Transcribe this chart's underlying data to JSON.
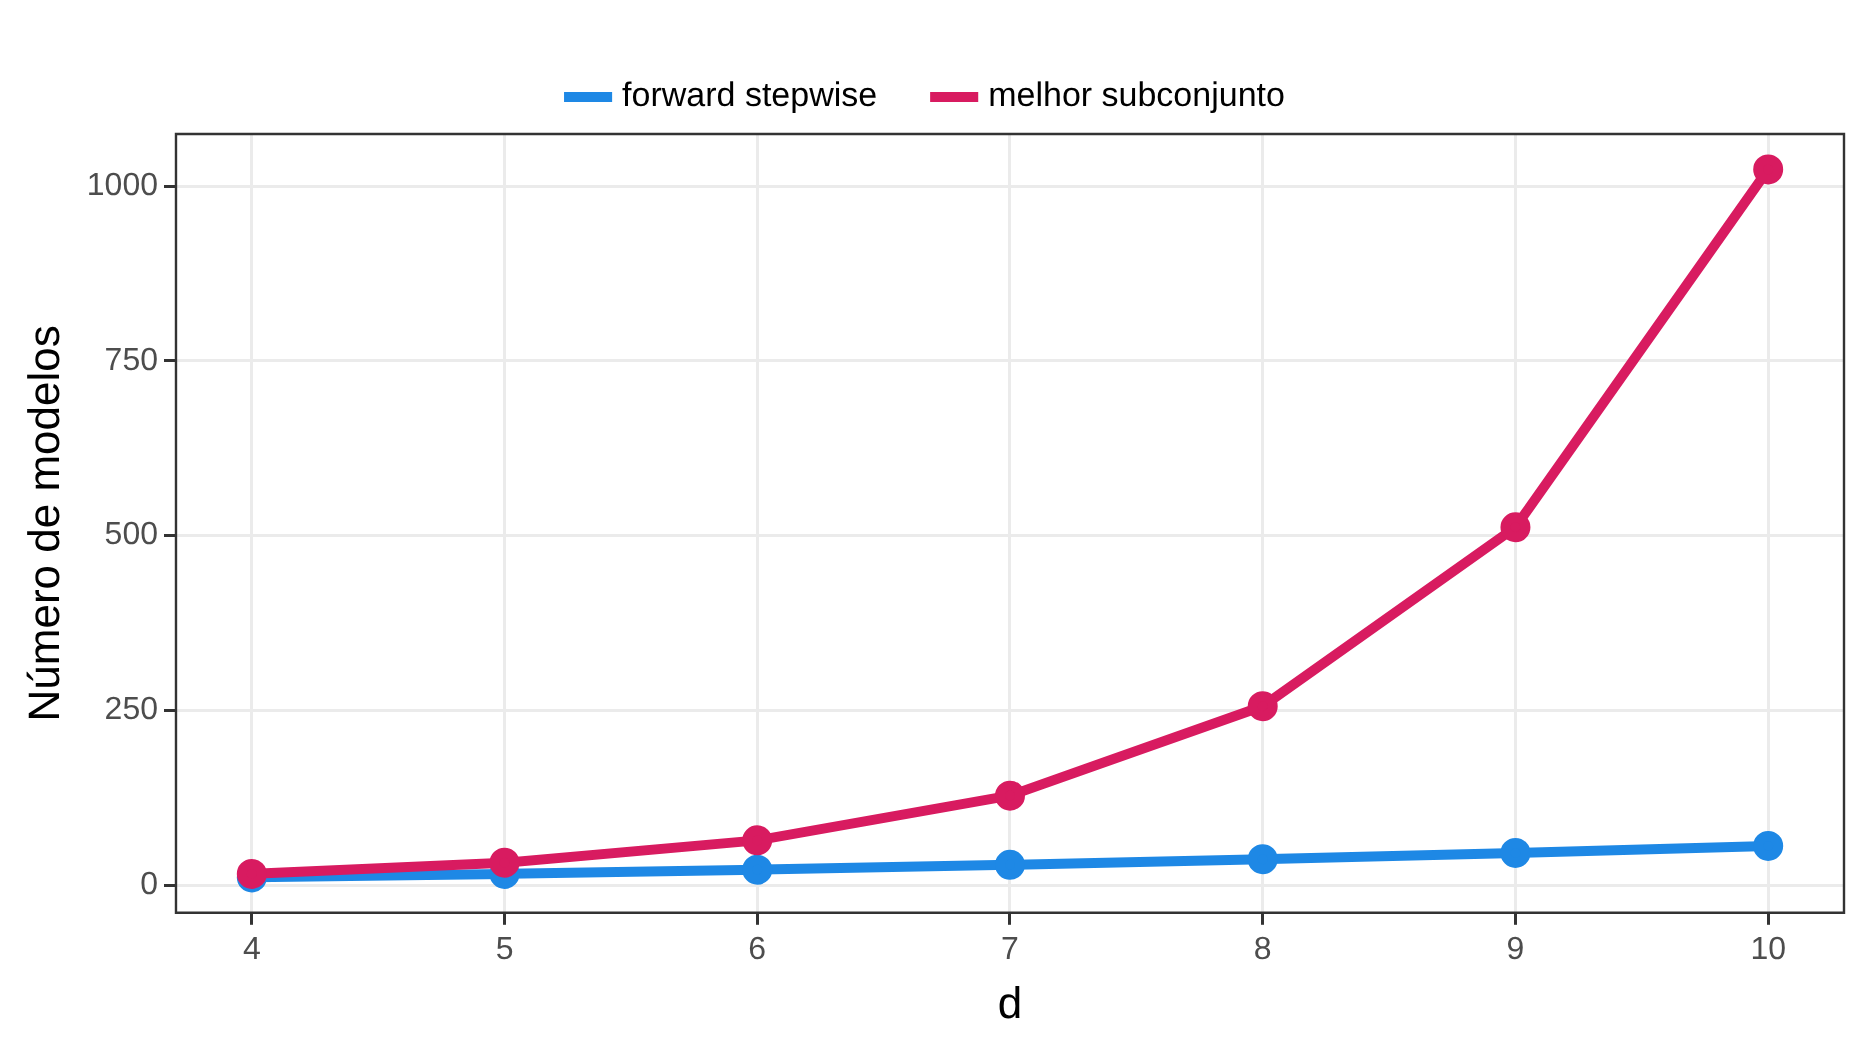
{
  "chart_data": {
    "type": "line",
    "xlabel": "d",
    "ylabel": "Número de modelos",
    "x": [
      4,
      5,
      6,
      7,
      8,
      9,
      10
    ],
    "series": [
      {
        "name": "forward stepwise",
        "color": "#1e88e5",
        "values": [
          11,
          16,
          22,
          29,
          37,
          46,
          56
        ]
      },
      {
        "name": "melhor subconjunto",
        "color": "#d81b60",
        "values": [
          16,
          32,
          64,
          128,
          256,
          512,
          1024
        ]
      }
    ],
    "xlim": [
      3.7,
      10.3
    ],
    "xticks": [
      4,
      5,
      6,
      7,
      8,
      9,
      10
    ],
    "ylim": [
      -39.65,
      1074.65
    ],
    "yticks": [
      0,
      250,
      500,
      750,
      1000
    ],
    "grid": true,
    "legend": "top",
    "marker": "circle",
    "line_style": "solid"
  }
}
